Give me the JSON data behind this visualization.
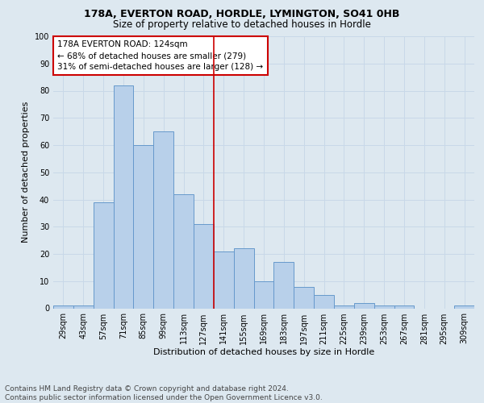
{
  "title": "178A, EVERTON ROAD, HORDLE, LYMINGTON, SO41 0HB",
  "subtitle": "Size of property relative to detached houses in Hordle",
  "xlabel": "Distribution of detached houses by size in Hordle",
  "ylabel": "Number of detached properties",
  "categories": [
    "29sqm",
    "43sqm",
    "57sqm",
    "71sqm",
    "85sqm",
    "99sqm",
    "113sqm",
    "127sqm",
    "141sqm",
    "155sqm",
    "169sqm",
    "183sqm",
    "197sqm",
    "211sqm",
    "225sqm",
    "239sqm",
    "253sqm",
    "267sqm",
    "281sqm",
    "295sqm",
    "309sqm"
  ],
  "values": [
    1,
    1,
    39,
    82,
    60,
    65,
    42,
    31,
    21,
    22,
    10,
    17,
    8,
    5,
    1,
    2,
    1,
    1,
    0,
    0,
    1
  ],
  "bar_color": "#b8d0ea",
  "bar_edge_color": "#6699cc",
  "vline_x": 7.5,
  "vline_color": "#cc0000",
  "annotation_text": "178A EVERTON ROAD: 124sqm\n← 68% of detached houses are smaller (279)\n31% of semi-detached houses are larger (128) →",
  "annotation_box_color": "#ffffff",
  "annotation_box_edge_color": "#cc0000",
  "ylim": [
    0,
    100
  ],
  "yticks": [
    0,
    10,
    20,
    30,
    40,
    50,
    60,
    70,
    80,
    90,
    100
  ],
  "grid_color": "#c8d8e8",
  "bg_color": "#dde8f0",
  "footnote": "Contains HM Land Registry data © Crown copyright and database right 2024.\nContains public sector information licensed under the Open Government Licence v3.0.",
  "title_fontsize": 9,
  "subtitle_fontsize": 8.5,
  "xlabel_fontsize": 8,
  "ylabel_fontsize": 8,
  "tick_fontsize": 7,
  "annotation_fontsize": 7.5,
  "footnote_fontsize": 6.5
}
